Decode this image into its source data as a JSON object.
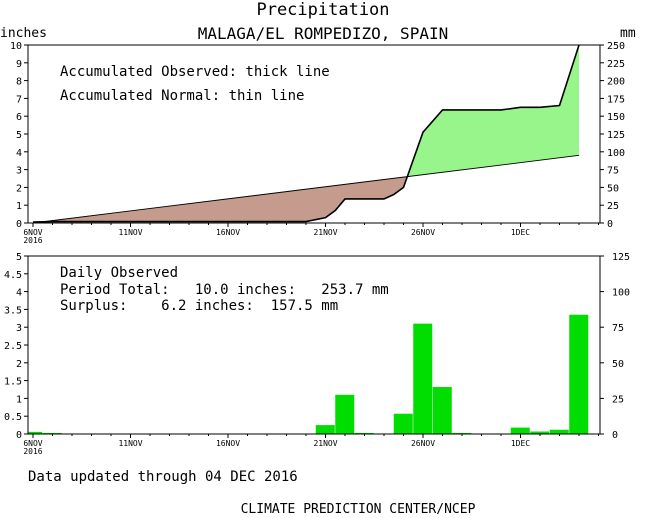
{
  "header": {
    "title": "Precipitation",
    "subtitle": "MALAGA/EL ROMPEDIZO, SPAIN"
  },
  "colors": {
    "surplus_fill": "#98f58c",
    "deficit_fill": "#c49b8c",
    "daily_bar": "#00dd00",
    "axis": "#000000"
  },
  "chart_data": [
    {
      "type": "area",
      "panel": "accumulated",
      "y_left_label": "inches",
      "y_right_label": "mm",
      "ylim": [
        0,
        10
      ],
      "ylim_right": [
        0,
        250
      ],
      "y_ticks": [
        "0",
        "1",
        "2",
        "3",
        "4",
        "5",
        "6",
        "7",
        "8",
        "9",
        "10"
      ],
      "y_right_ticks": [
        "0",
        "25",
        "50",
        "75",
        "100",
        "125",
        "150",
        "175",
        "200",
        "225",
        "250"
      ],
      "x_ticks": [
        {
          "day": 0,
          "label": "6NOV",
          "sublabel": "2016"
        },
        {
          "day": 5,
          "label": "11NOV",
          "sublabel": ""
        },
        {
          "day": 10,
          "label": "16NOV",
          "sublabel": ""
        },
        {
          "day": 15,
          "label": "21NOV",
          "sublabel": ""
        },
        {
          "day": 20,
          "label": "26NOV",
          "sublabel": ""
        },
        {
          "day": 25,
          "label": "1DEC",
          "sublabel": ""
        }
      ],
      "annotations": [
        "Accumulated Observed: thick line",
        "Accumulated Normal: thin line"
      ],
      "series": [
        {
          "style": "thick",
          "x": [
            0,
            1,
            14,
            15,
            15.5,
            16,
            17,
            18,
            18.5,
            19,
            20,
            21,
            22,
            23,
            24,
            25,
            26,
            27,
            28
          ],
          "values": [
            0.05,
            0.08,
            0.08,
            0.3,
            0.7,
            1.35,
            1.35,
            1.35,
            1.6,
            2.0,
            5.1,
            6.35,
            6.35,
            6.35,
            6.35,
            6.5,
            6.5,
            6.6,
            10.0
          ]
        },
        {
          "style": "thin",
          "x": [
            0,
            28
          ],
          "values": [
            0.0,
            3.8
          ]
        }
      ]
    },
    {
      "type": "bar",
      "panel": "daily",
      "ylim": [
        0,
        5
      ],
      "ylim_right": [
        0,
        125
      ],
      "y_ticks": [
        "0",
        "0.5",
        "1",
        "1.5",
        "2",
        "2.5",
        "3",
        "3.5",
        "4",
        "4.5",
        "5"
      ],
      "y_right_ticks": [
        "0",
        "25",
        "50",
        "75",
        "100",
        "125"
      ],
      "x_ticks": [
        {
          "day": 0,
          "label": "6NOV",
          "sublabel": "2016"
        },
        {
          "day": 5,
          "label": "11NOV",
          "sublabel": ""
        },
        {
          "day": 10,
          "label": "16NOV",
          "sublabel": ""
        },
        {
          "day": 15,
          "label": "21NOV",
          "sublabel": ""
        },
        {
          "day": 20,
          "label": "26NOV",
          "sublabel": ""
        },
        {
          "day": 25,
          "label": "1DEC",
          "sublabel": ""
        }
      ],
      "x": [
        0,
        1,
        15,
        16,
        17,
        19,
        20,
        21,
        22,
        25,
        26,
        27,
        28
      ],
      "values": [
        0.06,
        0.03,
        0.25,
        1.1,
        0.03,
        0.57,
        3.1,
        1.32,
        0.03,
        0.18,
        0.07,
        0.12,
        3.35
      ],
      "annotations": {
        "title": "Daily Observed",
        "line1": "Period Total:   10.0 inches:   253.7 mm",
        "line2": "Surplus:    6.2 inches:  157.5 mm"
      }
    }
  ],
  "footer": {
    "updated": "Data updated through 04 DEC 2016",
    "credit": "CLIMATE PREDICTION CENTER/NCEP"
  }
}
